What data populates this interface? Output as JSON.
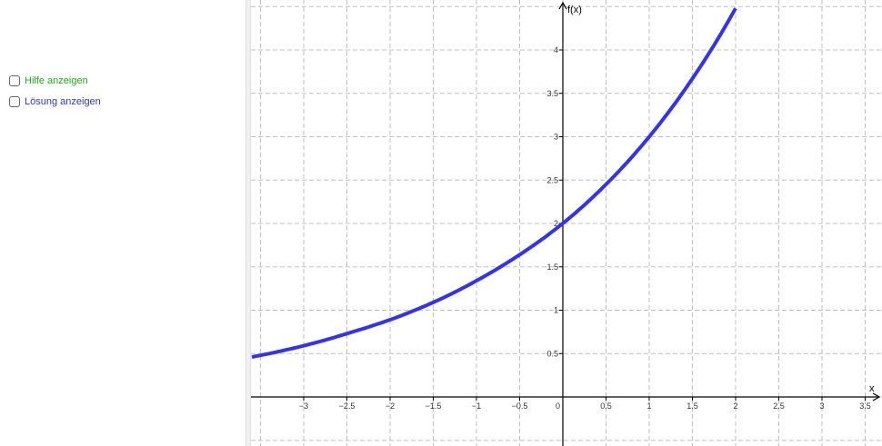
{
  "controls": {
    "help": {
      "label": "Hilfe anzeigen",
      "color": "#22aa22",
      "checked": false
    },
    "solution": {
      "label": "Lösung anzeigen",
      "color": "#3333cc",
      "checked": false
    }
  },
  "graph": {
    "x_label": "x",
    "y_label": "f(x)",
    "curve_color": "#3333ee",
    "grid": true,
    "x_ticks": [
      "−3",
      "−2.5",
      "−2",
      "−1.5",
      "−1",
      "−0.5",
      "0.5",
      "1",
      "1.5",
      "2",
      "2.5",
      "3",
      "3.5"
    ],
    "y_ticks": [
      "0.5",
      "1",
      "1.5",
      "2",
      "2.5",
      "3",
      "3.5",
      "4"
    ],
    "origin_label": "0"
  },
  "chart_data": {
    "type": "line",
    "xlabel": "x",
    "ylabel": "f(x)",
    "xlim": [
      -3.6,
      3.6
    ],
    "ylim": [
      -0.5,
      4.6
    ],
    "grid": true,
    "series": [
      {
        "x": [
          -3.6,
          -3,
          -2.5,
          -2,
          -1.5,
          -1,
          -0.5,
          0,
          0.5,
          1,
          1.5,
          2
        ],
        "y": [
          0.46,
          0.59,
          0.73,
          0.89,
          1.09,
          1.34,
          1.64,
          2.0,
          2.45,
          3.0,
          3.67,
          4.48
        ]
      }
    ]
  }
}
